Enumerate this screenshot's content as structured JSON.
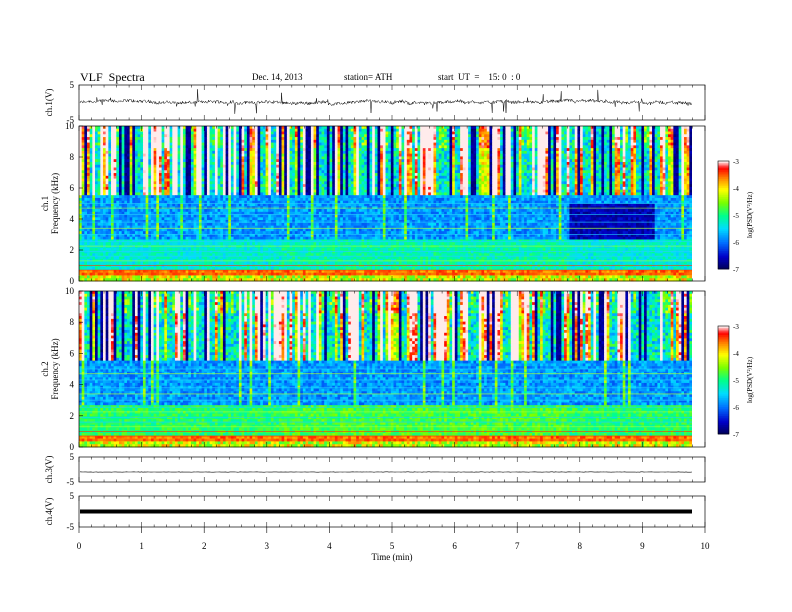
{
  "header": {
    "title": "VLF  Spectra",
    "date": "Dec. 14, 2013",
    "station": "station= ATH",
    "start": "start  UT  =    15: 0  : 0"
  },
  "chart_data": [
    {
      "type": "line",
      "name": "ch1-waveform",
      "ylabel": "ch.1(V)",
      "yticks": [
        "5",
        "-5"
      ],
      "ylim": [
        -5,
        5
      ],
      "xlim": [
        0,
        10
      ],
      "level": 0,
      "color": "#000000"
    },
    {
      "type": "heatmap",
      "name": "ch1-spectrogram",
      "ylabel_lines": [
        "ch.1",
        "Frequency  (kHz)"
      ],
      "ylim": [
        0,
        10
      ],
      "yticks": [
        "0",
        "2",
        "4",
        "6",
        "8",
        "10"
      ],
      "xlim": [
        0,
        9.8
      ],
      "colorbar": {
        "label": "log(PSD(V²/Hz)",
        "ticks": [
          "-3",
          "-4",
          "-5",
          "-6",
          "-7"
        ],
        "range": [
          -7,
          -3
        ],
        "colors": [
          "#000066",
          "#0000ff",
          "#0080ff",
          "#00ffff",
          "#00ff80",
          "#80ff00",
          "#ffff00",
          "#ff8000",
          "#ff0000",
          "#ffffff"
        ]
      }
    },
    {
      "type": "heatmap",
      "name": "ch2-spectrogram",
      "ylabel_lines": [
        "ch.2",
        "Frequency  (kHz)"
      ],
      "ylim": [
        0,
        10
      ],
      "yticks": [
        "0",
        "2",
        "4",
        "6",
        "8",
        "10"
      ],
      "xlim": [
        0,
        9.8
      ],
      "colorbar": {
        "label": "log(PSD(V²/Hz)",
        "ticks": [
          "-3",
          "-4",
          "-5",
          "-6",
          "-7"
        ],
        "range": [
          -7,
          -3
        ]
      }
    },
    {
      "type": "line",
      "name": "ch3-waveform",
      "ylabel": "ch.3(V)",
      "yticks": [
        "5",
        "-5"
      ],
      "ylim": [
        -5,
        5
      ],
      "level": -1,
      "color": "#000000"
    },
    {
      "type": "line",
      "name": "ch4-waveform",
      "ylabel": "ch.4(V)",
      "yticks": [
        "5",
        "-5"
      ],
      "ylim": [
        -5,
        5
      ],
      "level": 0,
      "color": "#000000"
    }
  ],
  "xaxis": {
    "label": "Time  (min)",
    "ticks": [
      "0",
      "1",
      "2",
      "3",
      "4",
      "5",
      "6",
      "7",
      "8",
      "9",
      "10"
    ],
    "range": [
      0,
      10
    ]
  }
}
